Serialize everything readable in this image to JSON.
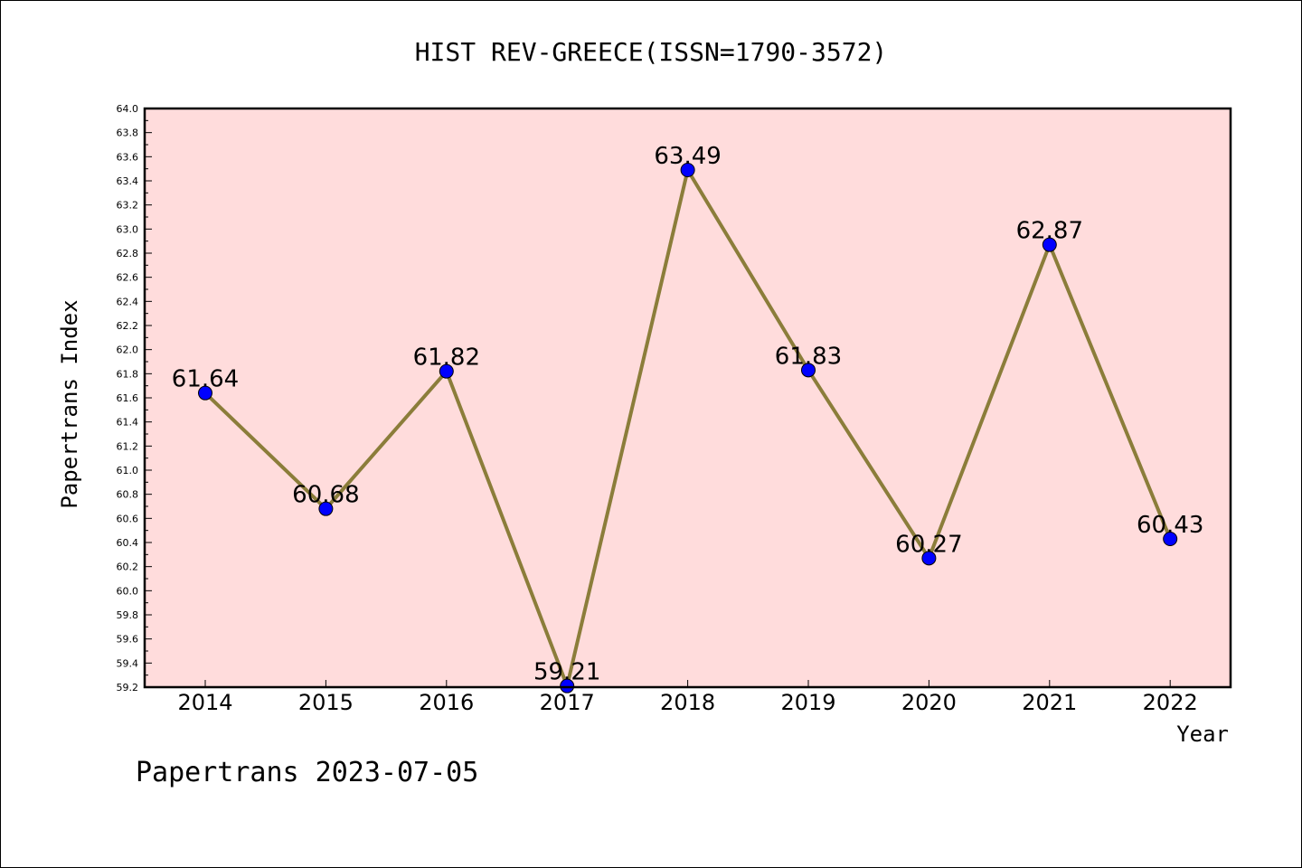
{
  "chart_data": {
    "type": "line",
    "title": "HIST REV-GREECE(ISSN=1790-3572)",
    "xlabel": "Year",
    "ylabel": "Papertrans Index",
    "categories": [
      "2014",
      "2015",
      "2016",
      "2017",
      "2018",
      "2019",
      "2020",
      "2021",
      "2022"
    ],
    "series": [
      {
        "values": [
          61.64,
          60.68,
          61.82,
          59.21,
          63.49,
          61.83,
          60.27,
          62.87,
          60.43
        ],
        "labels": [
          "61.64",
          "60.68",
          "61.82",
          "59.21",
          "63.49",
          "61.83",
          "60.27",
          "62.87",
          "60.43"
        ]
      }
    ],
    "ylim": [
      59.2,
      64.0
    ],
    "yticks": [
      "59.2",
      "59.4",
      "59.6",
      "59.8",
      "60.0",
      "60.2",
      "60.4",
      "60.6",
      "60.8",
      "61.0",
      "61.2",
      "61.4",
      "61.6",
      "61.8",
      "62.0",
      "62.2",
      "62.4",
      "62.6",
      "62.8",
      "63.0",
      "63.2",
      "63.4",
      "63.6",
      "63.8",
      "64.0"
    ],
    "grid": false,
    "colors": {
      "plot_background": "#ffdcdc",
      "line": "#8b7d3a",
      "marker": "#0000ff"
    }
  },
  "footer": "Papertrans 2023-07-05"
}
